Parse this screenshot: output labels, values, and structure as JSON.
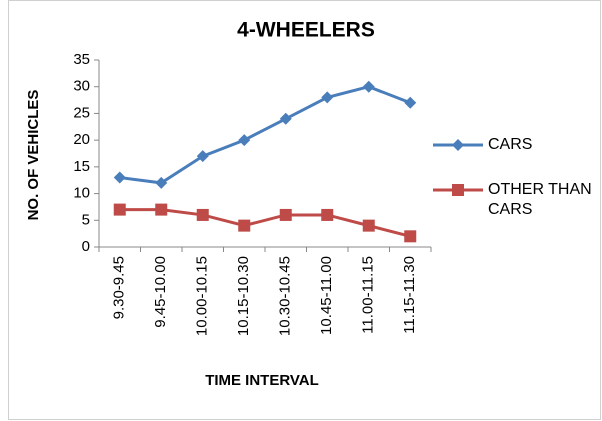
{
  "chart_data": {
    "type": "line",
    "title": "4-WHEELERS",
    "x_label": "TIME INTERVAL",
    "y_label": "NO. OF VEHICLES",
    "categories": [
      "9.30-9.45",
      "9.45-10.00",
      "10.00-10.15",
      "10.15-10.30",
      "10.30-10.45",
      "10.45-11.00",
      "11.00-11.15",
      "11.15-11.30"
    ],
    "series": [
      {
        "name": "CARS",
        "color": "#4a7ebb",
        "marker": "diamond",
        "values": [
          13,
          12,
          17,
          20,
          24,
          28,
          30,
          27
        ]
      },
      {
        "name": "OTHER THAN CARS",
        "color": "#be4b48",
        "marker": "square",
        "values": [
          7,
          7,
          6,
          4,
          6,
          6,
          4,
          2
        ]
      }
    ],
    "ylim": [
      0,
      35
    ],
    "yticks": [
      0,
      5,
      10,
      15,
      20,
      25,
      30,
      35
    ],
    "grid": false,
    "legend": "right"
  }
}
